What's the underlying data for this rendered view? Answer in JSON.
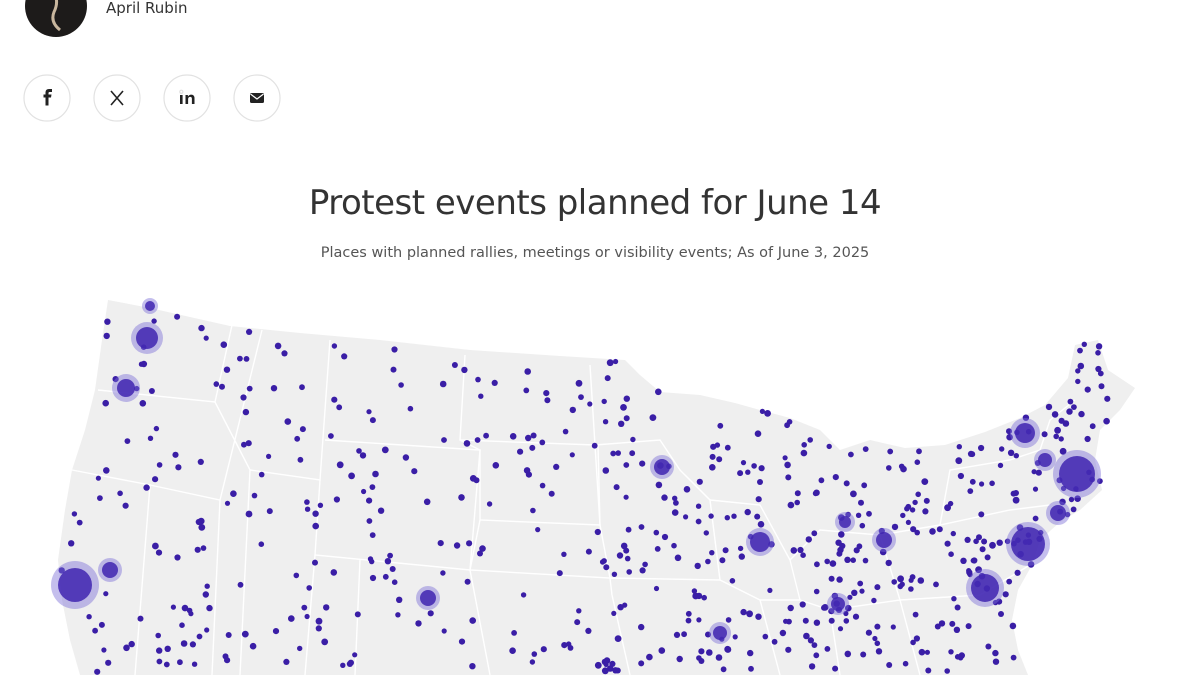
{
  "author": {
    "name": "April Rubin"
  },
  "graphic": {
    "title": "Protest events planned for June 14",
    "subtitle": "Places with planned rallies, meetings or visibility events; As of June 3, 2025"
  }
}
